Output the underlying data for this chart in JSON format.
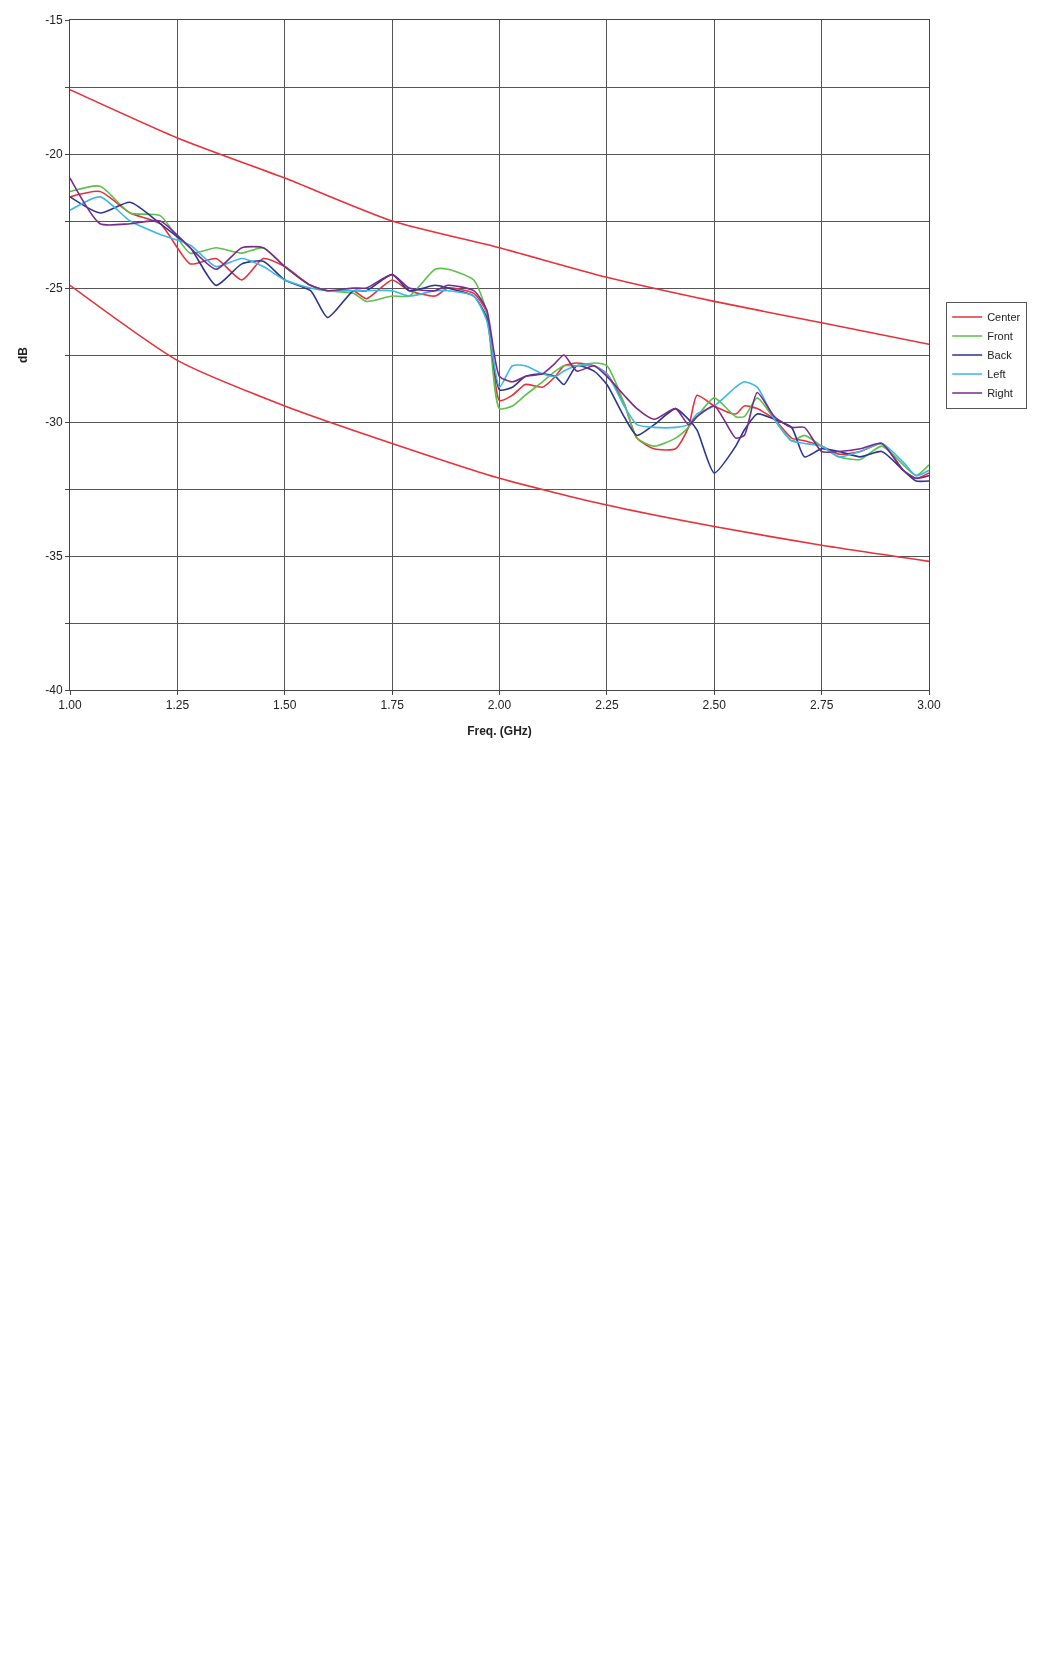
{
  "chart_data": {
    "type": "line",
    "xlabel": "Freq. (GHz)",
    "ylabel": "dB",
    "x": [
      1.0,
      1.07,
      1.14,
      1.21,
      1.28,
      1.34,
      1.4,
      1.45,
      1.5,
      1.56,
      1.6,
      1.66,
      1.69,
      1.75,
      1.79,
      1.85,
      1.88,
      1.94,
      1.97,
      2.0,
      2.03,
      2.06,
      2.1,
      2.13,
      2.15,
      2.18,
      2.22,
      2.25,
      2.29,
      2.32,
      2.36,
      2.41,
      2.44,
      2.46,
      2.5,
      2.55,
      2.57,
      2.6,
      2.64,
      2.68,
      2.71,
      2.75,
      2.79,
      2.84,
      2.89,
      2.94,
      2.97,
      3.0
    ],
    "series": [
      {
        "name": "Center",
        "color": "#e8303a",
        "values": [
          -21.6,
          -21.4,
          -22.2,
          -22.6,
          -24.1,
          -23.9,
          -24.7,
          -23.9,
          -24.2,
          -24.9,
          -25.1,
          -25.1,
          -25.4,
          -24.7,
          -25.1,
          -25.3,
          -25.0,
          -25.2,
          -25.9,
          -29.2,
          -29.0,
          -28.6,
          -28.7,
          -28.3,
          -27.9,
          -27.8,
          -27.9,
          -28.2,
          -29.3,
          -30.6,
          -31.0,
          -31.0,
          -30.2,
          -29.0,
          -29.4,
          -29.7,
          -29.4,
          -29.5,
          -29.9,
          -30.6,
          -30.7,
          -30.9,
          -31.2,
          -31.1,
          -30.8,
          -31.8,
          -32.1,
          -31.9
        ]
      },
      {
        "name": "Front",
        "color": "#5cc04a",
        "values": [
          -21.4,
          -21.2,
          -22.2,
          -22.3,
          -23.7,
          -23.5,
          -23.7,
          -23.5,
          -24.2,
          -24.9,
          -25.1,
          -25.2,
          -25.5,
          -25.3,
          -25.3,
          -24.3,
          -24.3,
          -24.7,
          -25.9,
          -29.5,
          -29.4,
          -29.0,
          -28.5,
          -28.1,
          -27.9,
          -27.9,
          -27.8,
          -27.9,
          -29.3,
          -30.6,
          -30.9,
          -30.6,
          -30.2,
          -29.8,
          -29.1,
          -29.8,
          -29.8,
          -29.1,
          -29.9,
          -30.7,
          -30.5,
          -30.9,
          -31.3,
          -31.4,
          -30.9,
          -31.6,
          -32.0,
          -31.6
        ]
      },
      {
        "name": "Back",
        "color": "#2a3590",
        "values": [
          -21.6,
          -22.2,
          -21.8,
          -22.6,
          -23.5,
          -24.9,
          -24.1,
          -24.0,
          -24.7,
          -25.1,
          -26.1,
          -25.1,
          -25.1,
          -24.5,
          -25.1,
          -24.9,
          -25.0,
          -25.3,
          -26.1,
          -28.8,
          -28.7,
          -28.3,
          -28.2,
          -28.3,
          -28.6,
          -27.9,
          -28.1,
          -28.6,
          -29.8,
          -30.5,
          -30.1,
          -29.5,
          -29.9,
          -30.3,
          -31.9,
          -30.9,
          -30.3,
          -29.7,
          -29.9,
          -30.2,
          -31.3,
          -31.0,
          -31.1,
          -31.3,
          -31.1,
          -31.8,
          -32.2,
          -32.2
        ]
      },
      {
        "name": "Left",
        "color": "#3cb8e8",
        "values": [
          -22.1,
          -21.6,
          -22.5,
          -23.0,
          -23.4,
          -24.2,
          -23.9,
          -24.2,
          -24.7,
          -25.0,
          -25.1,
          -25.1,
          -25.1,
          -25.1,
          -25.3,
          -25.1,
          -25.1,
          -25.3,
          -26.2,
          -28.7,
          -27.9,
          -27.9,
          -28.2,
          -28.3,
          -28.1,
          -27.9,
          -27.9,
          -28.2,
          -29.4,
          -30.1,
          -30.2,
          -30.2,
          -30.1,
          -29.7,
          -29.4,
          -28.7,
          -28.5,
          -28.7,
          -29.9,
          -30.7,
          -30.8,
          -30.9,
          -31.3,
          -31.1,
          -30.8,
          -31.5,
          -32.0,
          -31.8
        ]
      },
      {
        "name": "Right",
        "color": "#7a2a8c",
        "values": [
          -20.9,
          -22.6,
          -22.6,
          -22.5,
          -23.5,
          -24.3,
          -23.5,
          -23.5,
          -24.2,
          -24.9,
          -25.1,
          -25.0,
          -25.0,
          -24.5,
          -25.0,
          -25.1,
          -24.9,
          -25.1,
          -25.8,
          -28.3,
          -28.5,
          -28.3,
          -28.2,
          -27.8,
          -27.5,
          -28.1,
          -27.9,
          -28.3,
          -29.0,
          -29.5,
          -29.9,
          -29.5,
          -30.1,
          -29.8,
          -29.4,
          -30.6,
          -30.5,
          -28.9,
          -29.8,
          -30.2,
          -30.2,
          -31.1,
          -31.1,
          -31.0,
          -30.8,
          -31.8,
          -32.1,
          -32.0
        ]
      },
      {
        "color": "#e8303a",
        "x": [
          1.0,
          1.25,
          1.5,
          1.75,
          2.0,
          2.25,
          2.5,
          2.75,
          3.0
        ],
        "values": [
          -17.6,
          -19.4,
          -20.9,
          -22.5,
          -23.5,
          -24.6,
          -25.5,
          -26.3,
          -27.1
        ]
      },
      {
        "color": "#e8303a",
        "x": [
          1.0,
          1.25,
          1.5,
          1.75,
          2.0,
          2.25,
          2.5,
          2.75,
          3.0
        ],
        "values": [
          -24.9,
          -27.7,
          -29.4,
          -30.8,
          -32.1,
          -33.1,
          -33.9,
          -34.6,
          -35.2
        ]
      }
    ],
    "xlim": [
      1.0,
      3.0
    ],
    "xticks": [
      {
        "value": 1.0,
        "label": "1.00"
      },
      {
        "value": 1.25,
        "label": "1.25"
      },
      {
        "value": 1.5,
        "label": "1.50"
      },
      {
        "value": 1.75,
        "label": "1.75"
      },
      {
        "value": 2.0,
        "label": "2.00"
      },
      {
        "value": 2.25,
        "label": "2.25"
      },
      {
        "value": 2.5,
        "label": "2.50"
      },
      {
        "value": 2.75,
        "label": "2.75"
      },
      {
        "value": 3.0,
        "label": "3.00"
      }
    ],
    "ylim": [
      -40,
      -15
    ],
    "yticks": [
      -40,
      {
        "value": -37.5,
        "label": null
      },
      -35,
      {
        "value": -32.5,
        "label": null
      },
      -30,
      {
        "value": -27.5,
        "label": null
      },
      -25,
      {
        "value": -22.5,
        "label": null
      },
      -20,
      {
        "value": -17.5,
        "label": null
      },
      -15
    ],
    "grid": true,
    "legend": "right",
    "marker": "none",
    "line_style": "solid"
  }
}
